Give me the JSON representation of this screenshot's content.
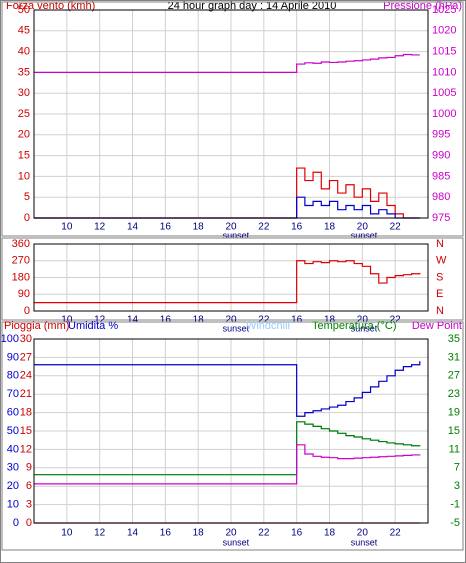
{
  "chart_data": [
    {
      "type": "line",
      "title": "24 hour graph day : 14 Aprile 2010",
      "y_label": "Forza vento (kmh)",
      "y2_label": "Pressione (hPa)",
      "y_color": "#cc0000",
      "y2_color": "#cc00cc",
      "grid": true,
      "x": [
        8,
        23.8,
        24,
        24.5,
        25,
        25.5,
        26,
        26.5,
        27,
        27.5,
        28,
        28.5,
        29,
        29.5,
        30,
        30.5,
        31,
        31.5
      ],
      "xlim": [
        8,
        32
      ],
      "xticks": [
        10,
        12,
        14,
        16,
        18,
        20,
        22,
        {
          "value": 24,
          "label": "16"
        },
        {
          "value": 26,
          "label": "18"
        },
        {
          "value": 28,
          "label": "20"
        },
        {
          "value": 30,
          "label": "22"
        }
      ],
      "ylim": [
        0,
        50
      ],
      "yticks": [
        0,
        5,
        10,
        15,
        20,
        25,
        30,
        35,
        40,
        45,
        50
      ],
      "y2lim": [
        975,
        1025
      ],
      "y2ticks": [
        975,
        980,
        985,
        990,
        995,
        1000,
        1005,
        1010,
        1015,
        1020,
        1025
      ],
      "annotations": [
        {
          "x": 20.3,
          "text": "sunset"
        },
        {
          "x": 28.1,
          "text": "sunset"
        }
      ],
      "series": [
        {
          "color": "#cc00cc",
          "axis": "y2",
          "values": [
            1010,
            1010,
            1012,
            1012.3,
            1012.2,
            1012.5,
            1012.4,
            1012.5,
            1012.7,
            1012.8,
            1013,
            1013.2,
            1013.5,
            1013.6,
            1014,
            1014.3,
            1014.2,
            1014.2
          ]
        },
        {
          "color": "#e00000",
          "values": [
            0,
            0,
            12,
            9,
            11,
            7,
            9,
            6,
            8,
            5,
            7,
            4,
            6,
            3,
            1,
            0,
            0,
            0
          ]
        },
        {
          "color": "#0000cc",
          "values": [
            0,
            0,
            5,
            3,
            4,
            3,
            4,
            2,
            3,
            2,
            3,
            1,
            2,
            1,
            0,
            0,
            0,
            0
          ]
        }
      ]
    },
    {
      "type": "line",
      "y_color": "#cc0000",
      "y2_color": "#cc0000",
      "grid": true,
      "x": [
        8,
        23.8,
        24,
        24.5,
        25,
        25.5,
        26,
        26.5,
        27,
        27.5,
        28,
        28.5,
        29,
        29.5,
        30,
        30.5,
        31,
        31.5
      ],
      "xlim": [
        8,
        32
      ],
      "xticks": [
        10,
        12,
        14,
        16,
        18,
        20,
        22,
        {
          "value": 24,
          "label": "16"
        },
        {
          "value": 26,
          "label": "18"
        },
        {
          "value": 28,
          "label": "20"
        },
        {
          "value": 30,
          "label": "22"
        }
      ],
      "ylim": [
        0,
        360
      ],
      "yticks": [
        0,
        90,
        180,
        270,
        360
      ],
      "y2lim": [
        0,
        360
      ],
      "y2ticks": [
        {
          "value": 0,
          "label": "N"
        },
        {
          "value": 90,
          "label": "E"
        },
        {
          "value": 180,
          "label": "S"
        },
        {
          "value": 270,
          "label": "W"
        },
        {
          "value": 360,
          "label": "N"
        }
      ],
      "annotations": [
        {
          "x": 20.3,
          "text": "sunset"
        },
        {
          "x": 28.1,
          "text": "sunset"
        }
      ],
      "series": [
        {
          "color": "#e00000",
          "values": [
            45,
            45,
            270,
            255,
            265,
            260,
            270,
            265,
            270,
            255,
            240,
            200,
            150,
            180,
            190,
            195,
            200,
            205
          ]
        }
      ]
    },
    {
      "type": "line",
      "y_color": "#0000cc",
      "y2_color": "#008000",
      "y3_color": "#cc0000",
      "grid": true,
      "x": [
        8,
        23.8,
        24,
        24.5,
        25,
        25.5,
        26,
        26.5,
        27,
        27.5,
        28,
        28.5,
        29,
        29.5,
        30,
        30.5,
        31,
        31.5
      ],
      "xlim": [
        8,
        32
      ],
      "xticks": [
        10,
        12,
        14,
        16,
        18,
        20,
        22,
        {
          "value": 24,
          "label": "16"
        },
        {
          "value": 26,
          "label": "18"
        },
        {
          "value": 28,
          "label": "20"
        },
        {
          "value": 30,
          "label": "22"
        }
      ],
      "ylim": [
        0,
        100
      ],
      "yticks": [
        0,
        10,
        20,
        30,
        40,
        50,
        60,
        70,
        80,
        90,
        100
      ],
      "y3lim": [
        0,
        30
      ],
      "y3ticks": [
        0,
        3,
        6,
        9,
        12,
        15,
        18,
        21,
        24,
        27,
        30
      ],
      "y2lim": [
        -5,
        35
      ],
      "y2ticks": [
        -5,
        -1,
        3,
        7,
        11,
        15,
        19,
        23,
        27,
        31,
        35
      ],
      "annotations": [
        {
          "x": 20.3,
          "text": "sunset"
        },
        {
          "x": 28.1,
          "text": "sunset"
        }
      ],
      "series": [
        {
          "name": "Pioggia (mm)",
          "color": "#cc0000",
          "axis": "y3",
          "values": [
            0,
            0,
            0,
            0,
            0,
            0,
            0,
            0,
            0,
            0,
            0,
            0,
            0,
            0,
            0,
            0,
            0,
            0
          ]
        },
        {
          "name": "Umidita %",
          "color": "#0000cc",
          "values": [
            86,
            86,
            58,
            60,
            61,
            62,
            63,
            64,
            66,
            68,
            71,
            74,
            77,
            80,
            83,
            85,
            86,
            88
          ]
        },
        {
          "name": "Windchill",
          "color": "#99ccff",
          "axis": "y2",
          "values": [
            5.5,
            5.5,
            17,
            16.5,
            16,
            15.5,
            15,
            14.5,
            14,
            13.7,
            13.3,
            13,
            12.7,
            12.4,
            12.2,
            12,
            11.8,
            11.7
          ]
        },
        {
          "name": "Temperatura (°C)",
          "color": "#008000",
          "axis": "y2",
          "values": [
            5.5,
            5.5,
            17,
            16.5,
            16,
            15.5,
            15,
            14.5,
            14,
            13.7,
            13.3,
            13,
            12.7,
            12.4,
            12.2,
            12,
            11.8,
            11.7
          ]
        },
        {
          "name": "Dew Point",
          "color": "#cc00cc",
          "axis": "y2",
          "values": [
            3.5,
            3.5,
            12,
            10,
            9.5,
            9.3,
            9.2,
            9,
            9,
            9.1,
            9.2,
            9.3,
            9.4,
            9.5,
            9.6,
            9.7,
            9.8,
            9.9
          ]
        }
      ]
    }
  ]
}
